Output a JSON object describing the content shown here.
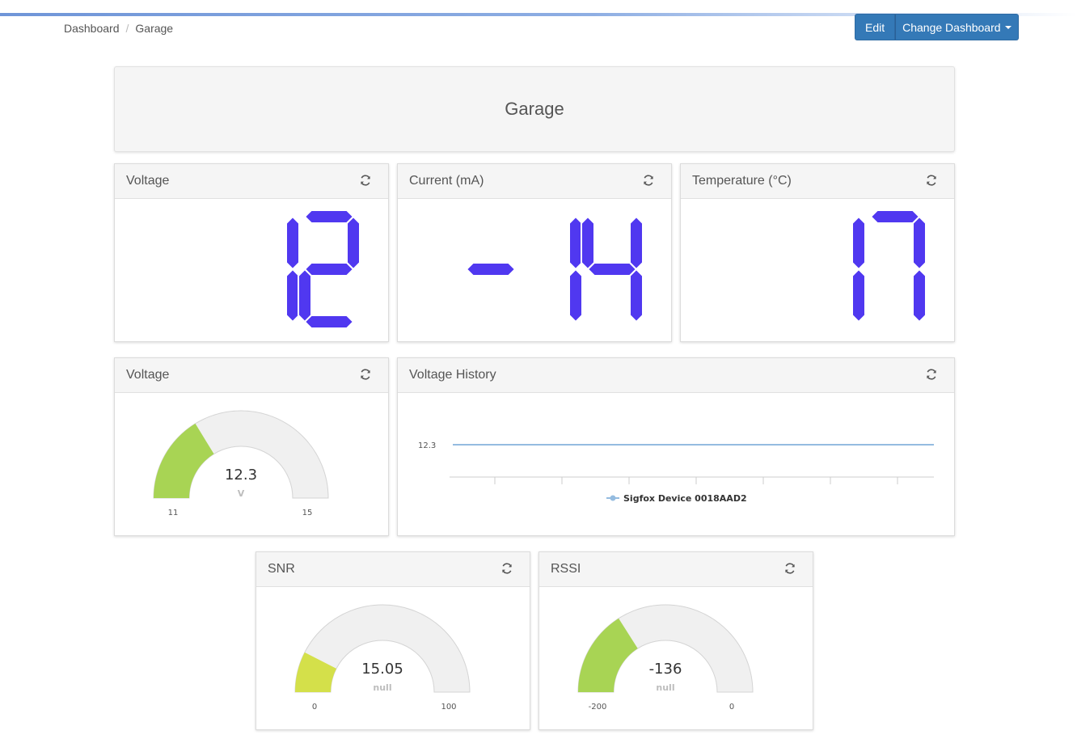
{
  "breadcrumb": {
    "home": "Dashboard",
    "current": "Garage"
  },
  "toolbar": {
    "edit_label": "Edit",
    "change_label": "Change Dashboard"
  },
  "dashboard": {
    "title": "Garage"
  },
  "colors": {
    "segment": "#5038f0",
    "gauge_green": "#a8d454",
    "gauge_yellow": "#d4e04a",
    "gauge_bg": "#f0f0f0",
    "line": "#95bce0"
  },
  "widgets": {
    "voltage_display": {
      "title": "Voltage",
      "value": "12"
    },
    "current_display": {
      "title": "Current (mA)",
      "value": "-14"
    },
    "temperature_display": {
      "title": "Temperature (°C)",
      "value": "17"
    },
    "voltage_gauge": {
      "title": "Voltage",
      "value": 12.3,
      "value_text": "12.3",
      "unit": "V",
      "min": 11,
      "max": 15,
      "min_text": "11",
      "max_text": "15"
    },
    "voltage_history": {
      "title": "Voltage History",
      "y_label": "12.3",
      "legend": "Sigfox Device 0018AAD2"
    },
    "snr_gauge": {
      "title": "SNR",
      "value": 15.05,
      "value_text": "15.05",
      "unit": "null",
      "min": 0,
      "max": 100,
      "min_text": "0",
      "max_text": "100"
    },
    "rssi_gauge": {
      "title": "RSSI",
      "value": -136,
      "value_text": "-136",
      "unit": "null",
      "min": -200,
      "max": 0,
      "min_text": "-200",
      "max_text": "0"
    }
  }
}
